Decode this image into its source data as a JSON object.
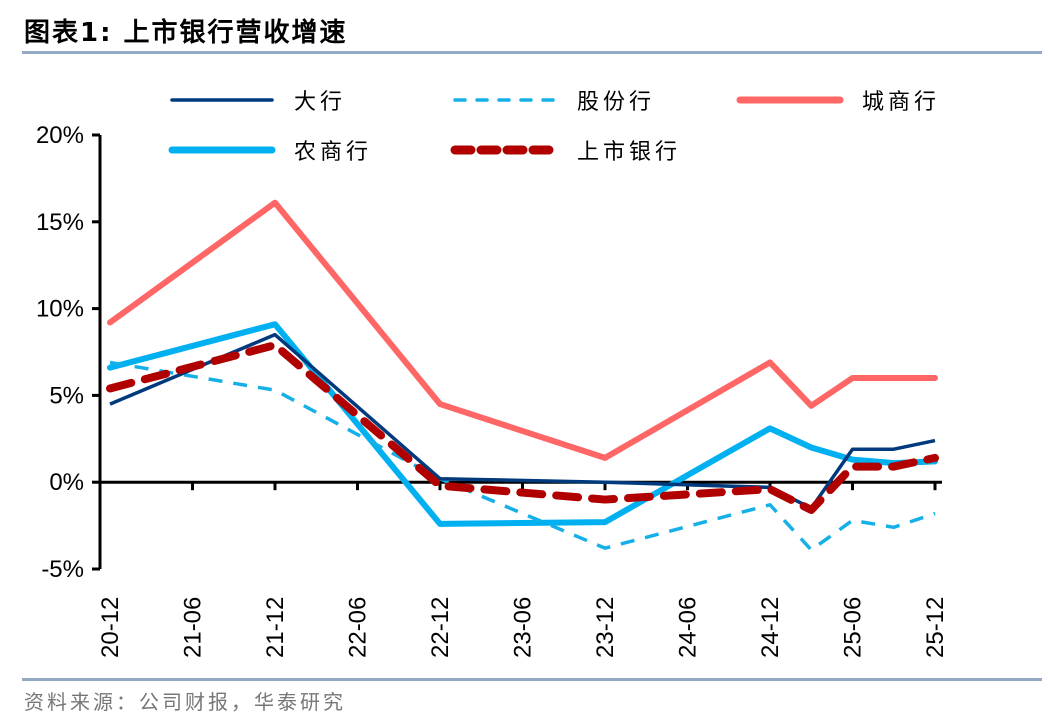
{
  "header": {
    "title": "图表1:   上市银行营收增速"
  },
  "footer": {
    "source": "资料来源：公司财报，华泰研究"
  },
  "chart_data": {
    "type": "line",
    "title": "上市银行营收增速",
    "xlabel": "",
    "ylabel": "",
    "ylim": [
      -0.05,
      0.2
    ],
    "yticks": [
      -0.05,
      0,
      0.05,
      0.1,
      0.15,
      0.2
    ],
    "ytick_labels": [
      "-5%",
      "0%",
      "5%",
      "10%",
      "15%",
      "20%"
    ],
    "xtick_labels": [
      "20-12",
      "21-06",
      "21-12",
      "22-06",
      "22-12",
      "23-06",
      "23-12",
      "24-06",
      "24-12",
      "25-06",
      "25-12"
    ],
    "x_period_index": {
      "20-12": 0,
      "21-06": 1,
      "21-12": 2,
      "22-06": 3,
      "22-12": 4,
      "23-06": 5,
      "23-12": 6,
      "24-06": 7,
      "24-12": 8,
      "25-03": 8.5,
      "25-06": 9,
      "25-09": 9.5,
      "25-12": 10
    },
    "x": [
      "20-12",
      "21-12",
      "22-12",
      "23-12",
      "24-12",
      "25-03",
      "25-06",
      "25-09",
      "25-12"
    ],
    "grid": false,
    "legend_position": "top",
    "series": [
      {
        "name": "大行",
        "color": "#003a7d",
        "style": "solid-thin",
        "values": [
          0.045,
          0.085,
          0.002,
          0.0,
          -0.003,
          -0.015,
          0.019,
          0.019,
          0.024
        ]
      },
      {
        "name": "股份行",
        "color": "#16b0e8",
        "style": "dashed-thin",
        "values": [
          0.069,
          0.053,
          0.002,
          -0.038,
          -0.013,
          -0.039,
          -0.022,
          -0.026,
          -0.018
        ]
      },
      {
        "name": "城商行",
        "color": "#ff6666",
        "style": "solid-thick",
        "values": [
          0.092,
          0.161,
          0.045,
          0.014,
          0.069,
          0.044,
          0.06,
          0.06,
          0.06
        ]
      },
      {
        "name": "农商行",
        "color": "#00b0f0",
        "style": "solid-thick",
        "values": [
          0.066,
          0.091,
          -0.024,
          -0.023,
          0.031,
          0.02,
          0.013,
          0.011,
          0.012
        ]
      },
      {
        "name": "上市银行",
        "color": "#b00000",
        "style": "dashed-thick",
        "values": [
          0.054,
          0.079,
          -0.002,
          -0.01,
          -0.004,
          -0.016,
          0.009,
          0.009,
          0.014
        ]
      }
    ]
  }
}
